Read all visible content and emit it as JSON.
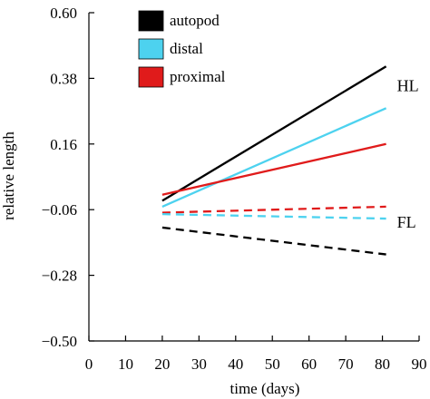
{
  "chart_data": {
    "type": "line",
    "title": "",
    "xlabel": "time (days)",
    "ylabel": "relative length",
    "xlim": [
      0,
      90
    ],
    "ylim": [
      -0.5,
      0.6
    ],
    "x_ticks": [
      0,
      10,
      20,
      30,
      40,
      50,
      60,
      70,
      80,
      90
    ],
    "y_ticks": [
      0.6,
      0.38,
      0.16,
      -0.06,
      -0.28,
      -0.5
    ],
    "y_tick_labels": [
      "0.60",
      "0.38",
      "0.16",
      "−0.06",
      "−0.28",
      "−0.50"
    ],
    "grid": false,
    "legend_position": "top-left",
    "legend": [
      {
        "label": "autopod",
        "color": "#000000"
      },
      {
        "label": "distal",
        "color": "#4dd2ef"
      },
      {
        "label": "proximal",
        "color": "#e01b1b"
      }
    ],
    "groups": [
      {
        "label": "HL",
        "line_style": "solid",
        "series": [
          {
            "name": "autopod",
            "color": "#000000",
            "x": [
              20,
              81
            ],
            "y": [
              -0.03,
              0.42
            ]
          },
          {
            "name": "distal",
            "color": "#4dd2ef",
            "x": [
              20,
              81
            ],
            "y": [
              -0.05,
              0.28
            ]
          },
          {
            "name": "proximal",
            "color": "#e01b1b",
            "x": [
              20,
              81
            ],
            "y": [
              -0.01,
              0.16
            ]
          }
        ]
      },
      {
        "label": "FL",
        "line_style": "dashed",
        "series": [
          {
            "name": "proximal",
            "color": "#e01b1b",
            "x": [
              20,
              81
            ],
            "y": [
              -0.07,
              -0.05
            ]
          },
          {
            "name": "distal",
            "color": "#4dd2ef",
            "x": [
              20,
              81
            ],
            "y": [
              -0.075,
              -0.09
            ]
          },
          {
            "name": "autopod",
            "color": "#000000",
            "x": [
              20,
              81
            ],
            "y": [
              -0.12,
              -0.21
            ]
          }
        ]
      }
    ]
  }
}
